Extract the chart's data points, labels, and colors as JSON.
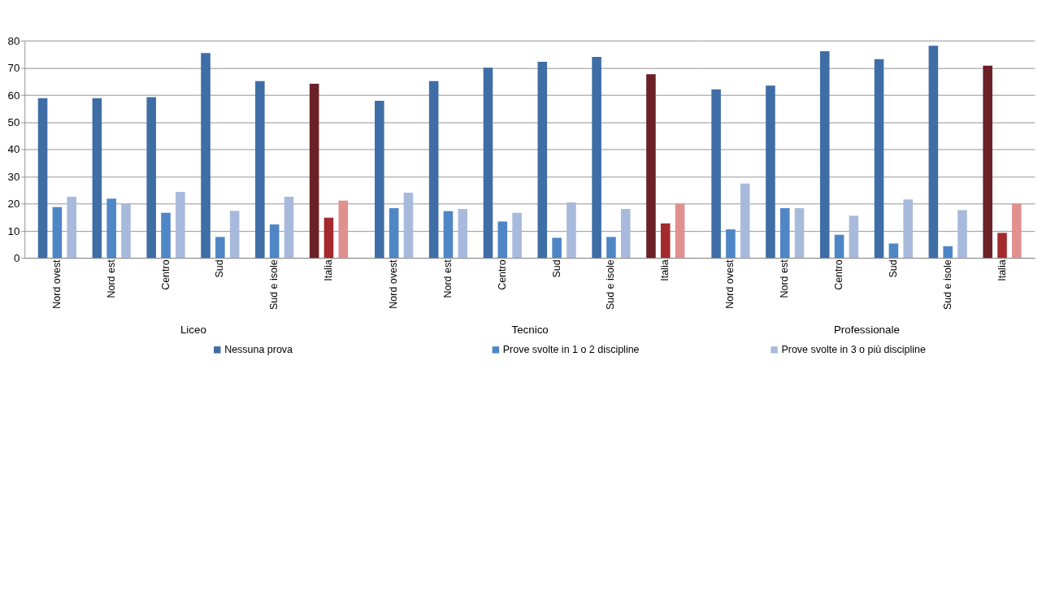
{
  "chart_data": [
    {
      "type": "bar",
      "xlabel": "Liceo",
      "categories": [
        "Nord ovest",
        "Nord est",
        "Centro",
        "Sud",
        "Sud e isole",
        "Italia"
      ],
      "ylim": [
        0,
        80
      ],
      "yticks": [
        0,
        10,
        20,
        30,
        40,
        50,
        60,
        70,
        80
      ],
      "grid": "y",
      "legend": "bottom",
      "series": [
        {
          "name": "Nessuna prova",
          "color": "#3f6ea6",
          "colors": [
            "#3f6ea6",
            "#3f6ea6",
            "#3f6ea6",
            "#3f6ea6",
            "#3f6ea6",
            "#6b2126"
          ],
          "values": [
            58.8,
            58.8,
            59.2,
            75.4,
            65.1,
            64.1
          ]
        },
        {
          "name": "Prove svolte in 1 o 2 discipline",
          "color": "#4f86c6",
          "colors": [
            "#4f86c6",
            "#4f86c6",
            "#4f86c6",
            "#4f86c6",
            "#4f86c6",
            "#a32b2e"
          ],
          "values": [
            18.7,
            21.8,
            16.6,
            7.7,
            12.3,
            14.8
          ]
        },
        {
          "name": "Prove svolte in 3 o più discipline",
          "color": "#a8badc",
          "colors": [
            "#a8badc",
            "#a8badc",
            "#a8badc",
            "#a8badc",
            "#a8badc",
            "#e0908f"
          ],
          "values": [
            22.5,
            19.8,
            24.3,
            17.3,
            22.5,
            21.1
          ]
        }
      ]
    },
    {
      "type": "bar",
      "xlabel": "Tecnico",
      "categories": [
        "Nord ovest",
        "Nord est",
        "Centro",
        "Sud",
        "Sud e isole",
        "Italia"
      ],
      "ylim": [
        0,
        80
      ],
      "yticks": [
        0,
        10,
        20,
        30,
        40,
        50,
        60,
        70,
        80
      ],
      "grid": "y",
      "tick_labels": "x",
      "series": [
        {
          "colors": [
            "#3f6ea6",
            "#3f6ea6",
            "#3f6ea6",
            "#3f6ea6",
            "#3f6ea6",
            "#6b2126"
          ],
          "values": [
            57.8,
            65.1,
            70.0,
            72.2,
            74.0,
            67.6
          ]
        },
        {
          "colors": [
            "#4f86c6",
            "#4f86c6",
            "#4f86c6",
            "#4f86c6",
            "#4f86c6",
            "#a32b2e"
          ],
          "values": [
            18.3,
            17.2,
            13.4,
            7.4,
            7.7,
            12.7
          ]
        },
        {
          "colors": [
            "#a8badc",
            "#a8badc",
            "#a8badc",
            "#a8badc",
            "#a8badc",
            "#e0908f"
          ],
          "values": [
            24.0,
            18.0,
            16.6,
            20.4,
            18.0,
            19.9
          ]
        }
      ]
    },
    {
      "type": "bar",
      "xlabel": "Professionale",
      "categories": [
        "Nord ovest",
        "Nord est",
        "Centro",
        "Sud",
        "Sud e isole",
        "Italia"
      ],
      "ylim": [
        0,
        80
      ],
      "yticks": [
        0,
        10,
        20,
        30,
        40,
        50,
        60,
        70,
        80
      ],
      "grid": "y",
      "tick_labels": "x",
      "series": [
        {
          "colors": [
            "#3f6ea6",
            "#3f6ea6",
            "#3f6ea6",
            "#3f6ea6",
            "#3f6ea6",
            "#6b2126"
          ],
          "values": [
            62.0,
            63.4,
            76.1,
            73.2,
            78.1,
            70.8
          ]
        },
        {
          "colors": [
            "#4f86c6",
            "#4f86c6",
            "#4f86c6",
            "#4f86c6",
            "#4f86c6",
            "#a32b2e"
          ],
          "values": [
            10.5,
            18.3,
            8.5,
            5.3,
            4.3,
            9.2
          ]
        },
        {
          "colors": [
            "#a8badc",
            "#a8badc",
            "#a8badc",
            "#a8badc",
            "#a8badc",
            "#e0908f"
          ],
          "values": [
            27.4,
            18.3,
            15.5,
            21.5,
            17.6,
            19.9
          ]
        }
      ]
    }
  ]
}
